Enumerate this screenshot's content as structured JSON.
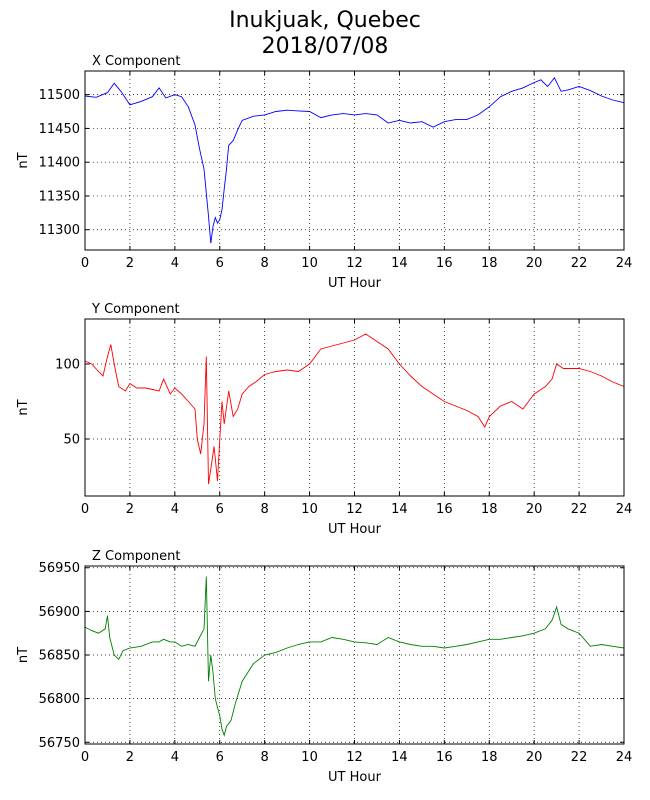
{
  "title": {
    "line1": "Inukjuak, Quebec",
    "line2": "2018/07/08"
  },
  "chart_data": [
    {
      "type": "line",
      "title": "X Component",
      "xlabel": "UT Hour",
      "ylabel": "nT",
      "xlim": [
        0,
        24
      ],
      "ylim": [
        11270,
        11535
      ],
      "xticks": [
        0,
        2,
        4,
        6,
        8,
        10,
        12,
        14,
        16,
        18,
        20,
        22,
        24
      ],
      "yticks": [
        11300,
        11350,
        11400,
        11450,
        11500
      ],
      "grid": true,
      "color": "#0000ff",
      "series": [
        {
          "x": [
            0,
            0.5,
            1.0,
            1.3,
            1.6,
            2.0,
            2.5,
            3.0,
            3.3,
            3.6,
            4.0,
            4.3,
            4.6,
            4.9,
            5.1,
            5.3,
            5.5,
            5.6,
            5.7,
            5.8,
            5.9,
            6.0,
            6.1,
            6.2,
            6.3,
            6.4,
            6.6,
            6.8,
            7.0,
            7.5,
            8.0,
            8.5,
            9.0,
            9.5,
            10.0,
            10.5,
            11.0,
            11.5,
            12.0,
            12.5,
            13.0,
            13.5,
            14.0,
            14.5,
            15.0,
            15.5,
            16.0,
            16.5,
            17.0,
            17.5,
            18.0,
            18.5,
            19.0,
            19.5,
            20.0,
            20.3,
            20.6,
            20.9,
            21.2,
            21.5,
            22.0,
            22.5,
            23.0,
            23.5,
            24.0
          ],
          "y": [
            11498,
            11496,
            11503,
            11517,
            11505,
            11485,
            11490,
            11497,
            11510,
            11495,
            11500,
            11497,
            11482,
            11455,
            11420,
            11390,
            11320,
            11280,
            11305,
            11318,
            11310,
            11315,
            11330,
            11360,
            11390,
            11425,
            11432,
            11448,
            11462,
            11468,
            11470,
            11475,
            11477,
            11476,
            11475,
            11466,
            11470,
            11472,
            11470,
            11472,
            11470,
            11458,
            11462,
            11458,
            11460,
            11452,
            11460,
            11463,
            11463,
            11470,
            11482,
            11497,
            11505,
            11510,
            11518,
            11522,
            11512,
            11525,
            11505,
            11507,
            11512,
            11506,
            11498,
            11492,
            11488
          ]
        }
      ]
    },
    {
      "type": "line",
      "title": "Y Component",
      "xlabel": "UT Hour",
      "ylabel": "nT",
      "xlim": [
        0,
        24
      ],
      "ylim": [
        12,
        130
      ],
      "xticks": [
        0,
        2,
        4,
        6,
        8,
        10,
        12,
        14,
        16,
        18,
        20,
        22,
        24
      ],
      "yticks": [
        50,
        100
      ],
      "grid": true,
      "color": "#ff0000",
      "series": [
        {
          "x": [
            0,
            0.3,
            0.6,
            0.8,
            1.0,
            1.15,
            1.3,
            1.5,
            1.8,
            2.0,
            2.3,
            2.7,
            3.0,
            3.3,
            3.5,
            3.8,
            4.0,
            4.3,
            4.6,
            4.9,
            5.0,
            5.15,
            5.3,
            5.4,
            5.5,
            5.6,
            5.75,
            5.9,
            6.0,
            6.1,
            6.2,
            6.4,
            6.6,
            6.8,
            7.0,
            7.3,
            7.6,
            8.0,
            8.5,
            9.0,
            9.5,
            10.0,
            10.5,
            11.0,
            11.5,
            12.0,
            12.5,
            12.8,
            13.0,
            13.5,
            14.0,
            14.5,
            15.0,
            15.5,
            16.0,
            16.5,
            17.0,
            17.5,
            17.8,
            18.0,
            18.5,
            19.0,
            19.5,
            20.0,
            20.5,
            20.8,
            21.0,
            21.3,
            21.5,
            22.0,
            22.5,
            23.0,
            23.5,
            24.0
          ],
          "y": [
            102,
            100,
            95,
            92,
            105,
            113,
            100,
            85,
            82,
            87,
            84,
            84,
            83,
            82,
            90,
            80,
            84,
            80,
            75,
            70,
            50,
            40,
            60,
            105,
            20,
            30,
            45,
            22,
            50,
            75,
            60,
            82,
            65,
            70,
            80,
            85,
            88,
            93,
            95,
            96,
            95,
            100,
            110,
            112,
            114,
            116,
            120,
            117,
            115,
            110,
            100,
            92,
            85,
            80,
            75,
            72,
            69,
            65,
            58,
            65,
            72,
            75,
            70,
            80,
            85,
            90,
            100,
            97,
            97,
            97,
            95,
            92,
            88,
            85
          ]
        }
      ]
    },
    {
      "type": "line",
      "title": "Z Component",
      "xlabel": "UT Hour",
      "ylabel": "nT",
      "xlim": [
        0,
        24
      ],
      "ylim": [
        56748,
        56952
      ],
      "xticks": [
        0,
        2,
        4,
        6,
        8,
        10,
        12,
        14,
        16,
        18,
        20,
        22,
        24
      ],
      "yticks": [
        56750,
        56800,
        56850,
        56900,
        56950
      ],
      "grid": true,
      "color": "#008000",
      "series": [
        {
          "x": [
            0,
            0.3,
            0.6,
            0.9,
            1.0,
            1.1,
            1.3,
            1.5,
            1.7,
            2.0,
            2.5,
            3.0,
            3.3,
            3.5,
            3.8,
            4.0,
            4.3,
            4.6,
            4.9,
            5.1,
            5.3,
            5.4,
            5.5,
            5.6,
            5.7,
            5.8,
            5.9,
            6.0,
            6.1,
            6.2,
            6.3,
            6.5,
            6.7,
            7.0,
            7.5,
            8.0,
            8.5,
            9.0,
            9.5,
            10.0,
            10.5,
            11.0,
            11.5,
            12.0,
            12.5,
            13.0,
            13.5,
            14.0,
            14.5,
            15.0,
            15.5,
            16.0,
            16.5,
            17.0,
            17.5,
            18.0,
            18.5,
            19.0,
            19.5,
            20.0,
            20.5,
            20.8,
            21.0,
            21.2,
            21.5,
            22.0,
            22.5,
            23.0,
            23.5,
            24.0
          ],
          "y": [
            56882,
            56878,
            56875,
            56880,
            56895,
            56870,
            56850,
            56845,
            56855,
            56858,
            56860,
            56865,
            56865,
            56868,
            56865,
            56865,
            56860,
            56862,
            56860,
            56870,
            56880,
            56940,
            56820,
            56850,
            56830,
            56800,
            56790,
            56780,
            56765,
            56758,
            56768,
            56775,
            56795,
            56820,
            56840,
            56850,
            56853,
            56858,
            56862,
            56865,
            56865,
            56870,
            56868,
            56865,
            56864,
            56862,
            56870,
            56865,
            56862,
            56860,
            56860,
            56858,
            56860,
            56862,
            56865,
            56868,
            56868,
            56870,
            56872,
            56875,
            56880,
            56890,
            56905,
            56885,
            56880,
            56875,
            56860,
            56862,
            56860,
            56858
          ]
        }
      ]
    }
  ]
}
